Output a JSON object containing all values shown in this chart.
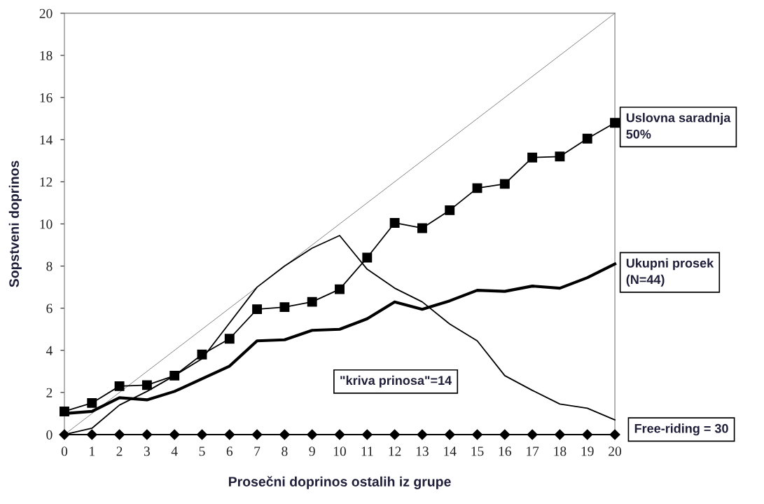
{
  "chart_data": {
    "type": "line",
    "xlabel": "Prosečni doprinos ostalih iz grupe",
    "ylabel": "Sopstveni doprinos",
    "x": [
      0,
      1,
      2,
      3,
      4,
      5,
      6,
      7,
      8,
      9,
      10,
      11,
      12,
      13,
      14,
      15,
      16,
      17,
      18,
      19,
      20
    ],
    "xlim": [
      0,
      20
    ],
    "xticks": [
      0,
      1,
      2,
      3,
      4,
      5,
      6,
      7,
      8,
      9,
      10,
      11,
      12,
      13,
      14,
      15,
      16,
      17,
      18,
      19,
      20
    ],
    "ylim": [
      0,
      20
    ],
    "yticks": [
      0,
      2,
      4,
      6,
      8,
      10,
      12,
      14,
      16,
      18,
      20
    ],
    "grid": false,
    "legend": false,
    "line_style": "solid",
    "series": [
      {
        "name": "Uslovna saradnja\n50%",
        "color": "#000000",
        "marker": "square",
        "values": [
          1.1,
          1.5,
          2.3,
          2.35,
          2.8,
          3.8,
          4.55,
          5.95,
          6.05,
          6.3,
          6.9,
          8.4,
          10.05,
          9.8,
          10.65,
          11.7,
          11.9,
          13.15,
          13.2,
          14.05,
          14.8
        ]
      },
      {
        "name": "Ukupni prosek\n(N=44)",
        "color": "#000000",
        "marker": "none",
        "values": [
          1.0,
          1.1,
          1.75,
          1.65,
          2.05,
          2.65,
          3.25,
          4.45,
          4.5,
          4.95,
          5.0,
          5.5,
          6.3,
          5.95,
          6.35,
          6.85,
          6.8,
          7.05,
          6.95,
          7.45,
          8.1
        ]
      },
      {
        "name": "\"kriva prinosa\"=14",
        "color": "#000000",
        "marker": "none",
        "values": [
          0,
          0.3,
          1.4,
          2.05,
          2.8,
          3.6,
          5.3,
          7.0,
          8.0,
          8.85,
          9.45,
          7.85,
          6.95,
          6.3,
          5.25,
          4.45,
          2.8,
          2.1,
          1.45,
          1.25,
          0.7
        ]
      },
      {
        "name": "Free-riding = 30",
        "color": "#000000",
        "marker": "diamond",
        "values": [
          0,
          0,
          0,
          0,
          0,
          0,
          0,
          0,
          0,
          0,
          0,
          0,
          0,
          0,
          0,
          0,
          0,
          0,
          0,
          0,
          0
        ]
      },
      {
        "color": "#808080",
        "marker": "none",
        "x": [
          0,
          20
        ],
        "values": [
          0,
          20
        ]
      }
    ]
  }
}
